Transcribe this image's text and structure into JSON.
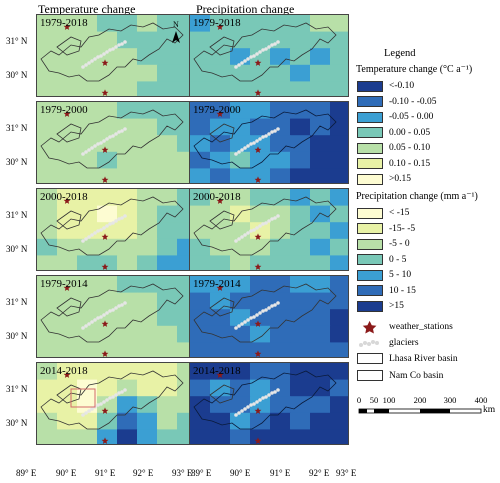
{
  "columns": {
    "left": "Temperature change",
    "right": "Precipitation change"
  },
  "panel_labels": [
    "1979-2018",
    "1979-2000",
    "2000-2018",
    "1979-2014",
    "2014-2018"
  ],
  "lat_labels": [
    "31° N",
    "30° N"
  ],
  "lon_labels": [
    "89° E",
    "90° E",
    "91° E",
    "92° E",
    "93° E"
  ],
  "north_arrow": "N",
  "legend": {
    "title": "Legend",
    "temperature": {
      "title": "Temperature change (°C a⁻¹)",
      "classes": [
        {
          "label": "<-0.10",
          "color": "#1b3c8f"
        },
        {
          "label": "-0.10 - -0.05",
          "color": "#2f6cb8"
        },
        {
          "label": "-0.05 - 0.00",
          "color": "#3b9fd3"
        },
        {
          "label": "0.00 - 0.05",
          "color": "#79c8b7"
        },
        {
          "label": "0.05 - 0.10",
          "color": "#b8e0a8"
        },
        {
          "label": "0.10 - 0.15",
          "color": "#e8f2a6"
        },
        {
          "label": ">0.15",
          "color": "#fdfcd2"
        }
      ]
    },
    "precipitation": {
      "title": "Precipitation change (mm a⁻¹)",
      "classes": [
        {
          "label": "< -15",
          "color": "#fdfcd2"
        },
        {
          "label": "-15- -5",
          "color": "#e8f2a6"
        },
        {
          "label": "-5 - 0",
          "color": "#b8e0a8"
        },
        {
          "label": "0 - 5",
          "color": "#79c8b7"
        },
        {
          "label": "5 - 10",
          "color": "#3b9fd3"
        },
        {
          "label": "10 - 15",
          "color": "#2f6cb8"
        },
        {
          "label": ">15",
          "color": "#1b3c8f"
        }
      ]
    },
    "symbols": {
      "stations": "weather_stations",
      "glaciers": "glaciers",
      "lhasa": "Lhasa River basin",
      "namco": "Nam Co  basin"
    }
  },
  "scale": {
    "ticks": [
      "0",
      "50",
      "100",
      "200",
      "300",
      "400"
    ],
    "unit": "km"
  }
}
